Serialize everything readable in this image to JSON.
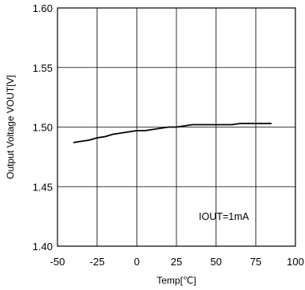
{
  "chart_data": {
    "type": "line",
    "title": "",
    "xlabel": "Temp[℃]",
    "ylabel": "Output Voltage VOUT[V]",
    "xlim": [
      -50,
      100
    ],
    "ylim": [
      1.4,
      1.6
    ],
    "x_ticks": [
      "-50",
      "-25",
      "0",
      "25",
      "50",
      "75",
      "100"
    ],
    "y_ticks": [
      "1.40",
      "1.45",
      "1.50",
      "1.55",
      "1.60"
    ],
    "grid": true,
    "legend": "none",
    "annotation": "IOUT=1mA",
    "series": [
      {
        "color": "#000000",
        "x": [
          -40,
          -35,
          -30,
          -25,
          -20,
          -15,
          -10,
          -5,
          0,
          5,
          10,
          15,
          20,
          25,
          30,
          35,
          40,
          45,
          50,
          55,
          60,
          65,
          70,
          75,
          80,
          85
        ],
        "y": [
          1.487,
          1.488,
          1.489,
          1.491,
          1.492,
          1.494,
          1.495,
          1.496,
          1.497,
          1.497,
          1.498,
          1.499,
          1.5,
          1.5,
          1.501,
          1.502,
          1.502,
          1.502,
          1.502,
          1.502,
          1.502,
          1.503,
          1.503,
          1.503,
          1.503,
          1.503
        ]
      }
    ]
  }
}
